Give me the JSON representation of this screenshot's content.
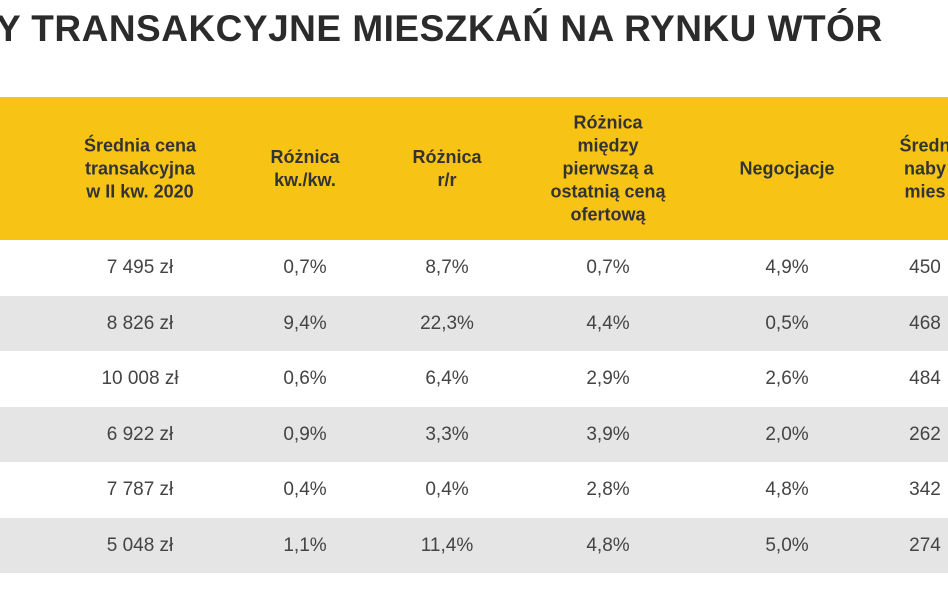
{
  "title": "Y TRANSAKCYJNE MIESZKAŃ NA RYNKU WTÓR",
  "table": {
    "headers": [
      "Średnia cena\ntransakcyjna\nw II kw. 2020",
      "Różnica\nkw./kw.",
      "Różnica\nr/r",
      "Różnica\nmiędzy\npierwszą a\nostatnią ceną\nofertową",
      "Negocjacje",
      "Średn\nnaby\nmies"
    ],
    "rows": [
      [
        "7 495 zł",
        "0,7%",
        "8,7%",
        "0,7%",
        "4,9%",
        "450"
      ],
      [
        "8 826 zł",
        "9,4%",
        "22,3%",
        "4,4%",
        "0,5%",
        "468"
      ],
      [
        "10 008 zł",
        "0,6%",
        "6,4%",
        "2,9%",
        "2,6%",
        "484"
      ],
      [
        "6 922 zł",
        "0,9%",
        "3,3%",
        "3,9%",
        "2,0%",
        "262"
      ],
      [
        "7 787 zł",
        "0,4%",
        "0,4%",
        "2,8%",
        "4,8%",
        "342"
      ],
      [
        "5 048 zł",
        "1,1%",
        "11,4%",
        "4,8%",
        "5,0%",
        "274"
      ]
    ]
  }
}
